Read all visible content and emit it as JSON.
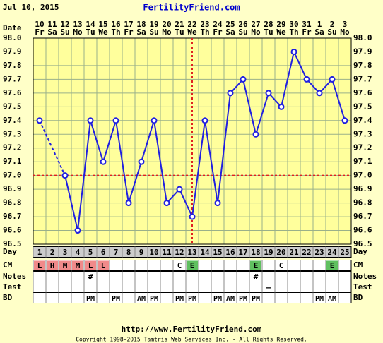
{
  "header": {
    "date": "Jul 10, 2015",
    "site": "FertilityFriend.com"
  },
  "chart_data": {
    "type": "line",
    "date_label": "Date",
    "categories": [
      "10",
      "11",
      "12",
      "13",
      "14",
      "15",
      "16",
      "17",
      "18",
      "19",
      "20",
      "21",
      "22",
      "23",
      "24",
      "25",
      "26",
      "27",
      "28",
      "29",
      "30",
      "31",
      "1",
      "2",
      "3"
    ],
    "weekdays": [
      "Fr",
      "Sa",
      "Su",
      "Mo",
      "Tu",
      "We",
      "Th",
      "Fr",
      "Sa",
      "Su",
      "Mo",
      "Tu",
      "We",
      "Th",
      "Fr",
      "Sa",
      "Su",
      "Mo",
      "Tu",
      "We",
      "Th",
      "Fr",
      "Sa",
      "Su",
      "Mo"
    ],
    "series": [
      {
        "name": "Temperature",
        "color": "#2020e0",
        "values": [
          97.4,
          null,
          97.0,
          96.6,
          97.4,
          97.1,
          97.4,
          96.8,
          97.1,
          97.4,
          96.8,
          96.9,
          96.7,
          97.4,
          96.8,
          97.6,
          97.7,
          97.3,
          97.6,
          97.5,
          97.9,
          97.7,
          97.6,
          97.7,
          97.4
        ]
      }
    ],
    "ylim": [
      96.5,
      98.0
    ],
    "yticks": [
      96.5,
      96.6,
      96.7,
      96.8,
      96.9,
      {
        "value": 97.0,
        "label": "97.0"
      },
      97.1,
      97.2,
      97.3,
      97.4,
      97.5,
      97.6,
      97.7,
      97.8,
      97.9,
      {
        "value": 98.0,
        "label": "98.0"
      }
    ],
    "grid": true,
    "coverline": 97.0,
    "coverline_color": "#e02020",
    "ovulation_index": 12,
    "rows": [
      {
        "label": "Day",
        "values": [
          1,
          2,
          3,
          4,
          5,
          6,
          7,
          8,
          9,
          10,
          11,
          12,
          13,
          14,
          15,
          16,
          17,
          18,
          19,
          20,
          21,
          22,
          23,
          24,
          25
        ]
      },
      {
        "label": "CM",
        "values": [
          "L",
          "H",
          "M",
          "M",
          "L",
          "L",
          null,
          null,
          null,
          null,
          null,
          "C",
          "E",
          null,
          null,
          null,
          null,
          "E",
          null,
          "C",
          null,
          null,
          null,
          "E",
          null
        ]
      },
      {
        "label": "Notes",
        "values": [
          null,
          null,
          null,
          null,
          "#",
          null,
          null,
          null,
          null,
          null,
          null,
          null,
          null,
          null,
          null,
          null,
          null,
          "#",
          null,
          null,
          null,
          null,
          null,
          null,
          null
        ]
      },
      {
        "label": "Test",
        "values": [
          null,
          null,
          null,
          null,
          null,
          null,
          null,
          null,
          null,
          null,
          null,
          null,
          null,
          null,
          null,
          null,
          null,
          null,
          "–",
          null,
          null,
          null,
          null,
          null,
          null
        ]
      },
      {
        "label": "BD",
        "values": [
          null,
          null,
          null,
          null,
          "PM",
          null,
          "PM",
          null,
          "AM",
          "PM",
          null,
          "PM",
          "PM",
          null,
          "PM",
          "AM",
          "PM",
          "PM",
          null,
          null,
          null,
          null,
          "PM",
          "AM",
          null
        ]
      }
    ],
    "cm_colors": {
      "L": "#f08a8a",
      "H": "#f08a8a",
      "M": "#f08a8a",
      "E": "#60c060"
    }
  },
  "footer": {
    "url": "http://www.FertilityFriend.com",
    "copyright": "Copyright 1998-2015 Tamtris Web Services Inc. - All Rights Reserved."
  }
}
